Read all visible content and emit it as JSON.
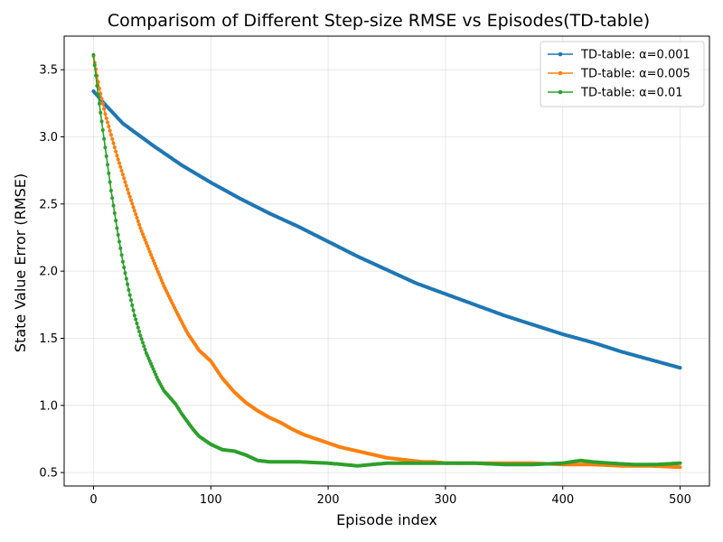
{
  "chart_data": {
    "type": "line",
    "title": "Comparisom of Different Step-size RMSE vs Episodes(TD-table)",
    "xlabel": "Episode index",
    "ylabel": "State Value Error (RMSE)",
    "xlim": [
      -25,
      525
    ],
    "ylim": [
      0.4,
      3.75
    ],
    "xticks": [
      0,
      100,
      200,
      300,
      400,
      500
    ],
    "yticks": [
      0.5,
      1.0,
      1.5,
      2.0,
      2.5,
      3.0,
      3.5
    ],
    "xtick_labels": [
      "0",
      "100",
      "200",
      "300",
      "400",
      "500"
    ],
    "ytick_labels": [
      "0.5",
      "1.0",
      "1.5",
      "2.0",
      "2.5",
      "3.0",
      "3.5"
    ],
    "grid": true,
    "legend_position": "top-right",
    "marker": "circle",
    "series": [
      {
        "name": "TD-table: α=0.001",
        "color": "#1f77b4",
        "x": [
          0,
          10,
          25,
          50,
          75,
          100,
          125,
          150,
          175,
          200,
          225,
          250,
          275,
          300,
          325,
          350,
          375,
          400,
          425,
          450,
          475,
          500
        ],
        "y": [
          3.34,
          3.24,
          3.1,
          2.94,
          2.79,
          2.66,
          2.54,
          2.43,
          2.33,
          2.22,
          2.11,
          2.01,
          1.91,
          1.83,
          1.75,
          1.67,
          1.6,
          1.53,
          1.47,
          1.4,
          1.34,
          1.28
        ]
      },
      {
        "name": "TD-table: α=0.005",
        "color": "#ff7f0e",
        "x": [
          0,
          5,
          10,
          20,
          30,
          40,
          50,
          60,
          70,
          80,
          90,
          100,
          110,
          120,
          130,
          140,
          150,
          160,
          170,
          180,
          190,
          200,
          210,
          220,
          230,
          240,
          250,
          260,
          270,
          280,
          290,
          300,
          325,
          350,
          375,
          400,
          425,
          450,
          475,
          500
        ],
        "y": [
          3.6,
          3.36,
          3.17,
          2.86,
          2.58,
          2.32,
          2.1,
          1.89,
          1.71,
          1.54,
          1.41,
          1.33,
          1.2,
          1.1,
          1.02,
          0.96,
          0.91,
          0.87,
          0.82,
          0.78,
          0.75,
          0.72,
          0.69,
          0.67,
          0.65,
          0.63,
          0.61,
          0.6,
          0.59,
          0.58,
          0.58,
          0.57,
          0.57,
          0.57,
          0.57,
          0.56,
          0.56,
          0.55,
          0.55,
          0.54
        ]
      },
      {
        "name": "TD-table: α=0.01",
        "color": "#2ca02c",
        "x": [
          0,
          3,
          6,
          10,
          15,
          20,
          25,
          30,
          35,
          40,
          45,
          50,
          55,
          60,
          65,
          70,
          75,
          80,
          85,
          90,
          95,
          100,
          110,
          120,
          130,
          140,
          150,
          175,
          200,
          225,
          250,
          275,
          300,
          325,
          350,
          375,
          400,
          415,
          425,
          440,
          460,
          480,
          500
        ],
        "y": [
          3.61,
          3.38,
          3.18,
          2.92,
          2.6,
          2.32,
          2.07,
          1.86,
          1.67,
          1.52,
          1.39,
          1.29,
          1.19,
          1.11,
          1.06,
          1.01,
          0.94,
          0.88,
          0.82,
          0.77,
          0.74,
          0.71,
          0.67,
          0.66,
          0.63,
          0.59,
          0.58,
          0.58,
          0.57,
          0.55,
          0.57,
          0.57,
          0.57,
          0.57,
          0.56,
          0.56,
          0.57,
          0.59,
          0.58,
          0.57,
          0.56,
          0.56,
          0.57
        ]
      }
    ]
  }
}
